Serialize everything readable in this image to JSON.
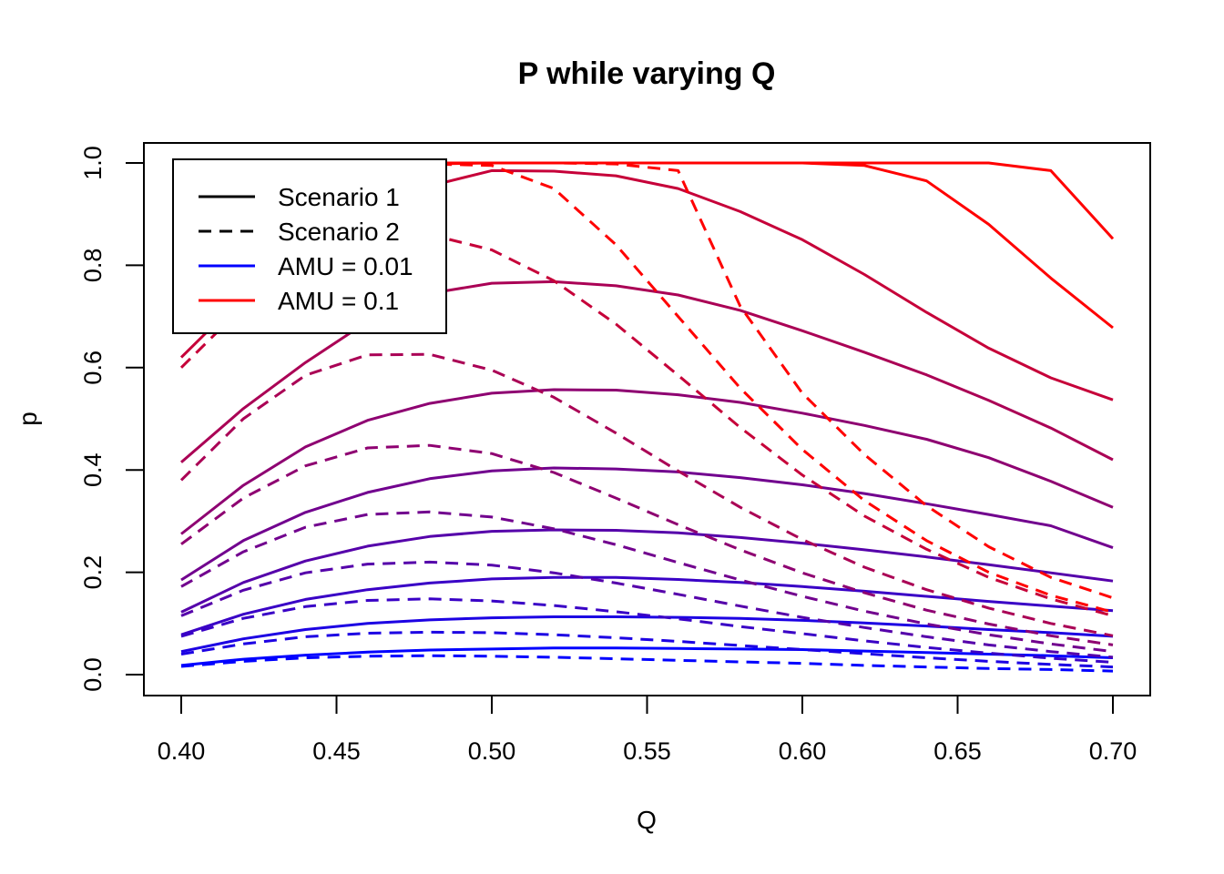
{
  "chart_data": {
    "type": "line",
    "title": "P while varying Q",
    "xlabel": "Q",
    "ylabel": "p",
    "xlim": [
      0.4,
      0.7
    ],
    "ylim": [
      0.0,
      1.0
    ],
    "x_ticks": [
      "0.40",
      "0.45",
      "0.50",
      "0.55",
      "0.60",
      "0.65",
      "0.70"
    ],
    "y_ticks": [
      "0.0",
      "0.2",
      "0.4",
      "0.6",
      "0.8",
      "1.0"
    ],
    "grid": false,
    "legend_position": "top-left",
    "legend": [
      {
        "label": "Scenario 1",
        "style": "solid",
        "color": "#000000"
      },
      {
        "label": "Scenario 2",
        "style": "dashed",
        "color": "#000000"
      },
      {
        "label": "AMU = 0.01",
        "style": "solid",
        "color": "#0000ff"
      },
      {
        "label": "AMU = 0.1",
        "style": "solid",
        "color": "#ff0000"
      }
    ],
    "x": [
      0.4,
      0.42,
      0.44,
      0.46,
      0.48,
      0.5,
      0.52,
      0.54,
      0.56,
      0.58,
      0.6,
      0.62,
      0.64,
      0.66,
      0.68,
      0.7
    ],
    "series": [
      {
        "style": "solid",
        "color": "#0000ff",
        "values": [
          0.018,
          0.03,
          0.038,
          0.044,
          0.048,
          0.05,
          0.052,
          0.052,
          0.051,
          0.05,
          0.049,
          0.046,
          0.043,
          0.04,
          0.037,
          0.033
        ]
      },
      {
        "style": "solid",
        "color": "#1c00e3",
        "values": [
          0.045,
          0.07,
          0.088,
          0.1,
          0.107,
          0.111,
          0.113,
          0.113,
          0.112,
          0.11,
          0.106,
          0.101,
          0.095,
          0.088,
          0.082,
          0.075
        ]
      },
      {
        "style": "solid",
        "color": "#3900c6",
        "values": [
          0.078,
          0.118,
          0.147,
          0.166,
          0.179,
          0.187,
          0.19,
          0.19,
          0.186,
          0.18,
          0.172,
          0.163,
          0.153,
          0.143,
          0.134,
          0.125
        ]
      },
      {
        "style": "solid",
        "color": "#5500aa",
        "values": [
          0.122,
          0.18,
          0.222,
          0.251,
          0.27,
          0.28,
          0.283,
          0.282,
          0.277,
          0.268,
          0.257,
          0.244,
          0.23,
          0.215,
          0.199,
          0.183
        ]
      },
      {
        "style": "solid",
        "color": "#71008e",
        "values": [
          0.185,
          0.262,
          0.317,
          0.356,
          0.383,
          0.398,
          0.404,
          0.402,
          0.396,
          0.385,
          0.371,
          0.354,
          0.334,
          0.313,
          0.291,
          0.248
        ]
      },
      {
        "style": "solid",
        "color": "#8e0071",
        "values": [
          0.275,
          0.37,
          0.445,
          0.497,
          0.53,
          0.55,
          0.557,
          0.556,
          0.547,
          0.532,
          0.511,
          0.487,
          0.46,
          0.424,
          0.378,
          0.327
        ]
      },
      {
        "style": "solid",
        "color": "#aa0055",
        "values": [
          0.415,
          0.52,
          0.61,
          0.69,
          0.745,
          0.765,
          0.768,
          0.76,
          0.742,
          0.712,
          0.672,
          0.63,
          0.586,
          0.536,
          0.482,
          0.42
        ]
      },
      {
        "style": "solid",
        "color": "#c60039",
        "values": [
          0.62,
          0.74,
          0.83,
          0.9,
          0.955,
          0.985,
          0.984,
          0.975,
          0.95,
          0.905,
          0.85,
          0.782,
          0.708,
          0.638,
          0.58,
          0.537
        ]
      },
      {
        "style": "solid",
        "color": "#ff0000",
        "values": [
          0.82,
          0.9,
          0.955,
          0.985,
          0.998,
          1.0,
          1.0,
          1.0,
          1.0,
          1.0,
          1.0,
          0.995,
          0.965,
          0.88,
          0.775,
          0.678
        ]
      },
      {
        "style": "solid",
        "color": "#ff0000",
        "values": [
          0.9,
          0.96,
          0.99,
          0.998,
          1.0,
          1.0,
          1.0,
          1.0,
          1.0,
          1.0,
          1.0,
          1.0,
          1.0,
          1.0,
          0.985,
          0.852
        ]
      },
      {
        "style": "dashed",
        "color": "#0000ff",
        "values": [
          0.016,
          0.026,
          0.033,
          0.036,
          0.037,
          0.036,
          0.034,
          0.031,
          0.028,
          0.025,
          0.022,
          0.018,
          0.015,
          0.012,
          0.01,
          0.007
        ]
      },
      {
        "style": "dashed",
        "color": "#1c00e3",
        "values": [
          0.04,
          0.06,
          0.074,
          0.081,
          0.083,
          0.082,
          0.078,
          0.072,
          0.065,
          0.057,
          0.049,
          0.041,
          0.033,
          0.026,
          0.02,
          0.015
        ]
      },
      {
        "style": "dashed",
        "color": "#3900c6",
        "values": [
          0.075,
          0.11,
          0.133,
          0.145,
          0.148,
          0.144,
          0.135,
          0.123,
          0.109,
          0.094,
          0.08,
          0.066,
          0.053,
          0.042,
          0.032,
          0.024
        ]
      },
      {
        "style": "dashed",
        "color": "#5500aa",
        "values": [
          0.115,
          0.165,
          0.199,
          0.216,
          0.22,
          0.214,
          0.199,
          0.179,
          0.157,
          0.134,
          0.112,
          0.092,
          0.074,
          0.058,
          0.045,
          0.034
        ]
      },
      {
        "style": "dashed",
        "color": "#71008e",
        "values": [
          0.172,
          0.24,
          0.288,
          0.313,
          0.318,
          0.308,
          0.285,
          0.254,
          0.219,
          0.185,
          0.153,
          0.124,
          0.099,
          0.078,
          0.06,
          0.045
        ]
      },
      {
        "style": "dashed",
        "color": "#8e0071",
        "values": [
          0.255,
          0.345,
          0.408,
          0.443,
          0.448,
          0.432,
          0.395,
          0.345,
          0.293,
          0.244,
          0.199,
          0.16,
          0.126,
          0.099,
          0.076,
          0.058
        ]
      },
      {
        "style": "dashed",
        "color": "#aa0055",
        "values": [
          0.38,
          0.5,
          0.585,
          0.625,
          0.626,
          0.595,
          0.542,
          0.472,
          0.398,
          0.327,
          0.264,
          0.21,
          0.166,
          0.13,
          0.1,
          0.076
        ]
      },
      {
        "style": "dashed",
        "color": "#c60039",
        "values": [
          0.6,
          0.72,
          0.81,
          0.86,
          0.86,
          0.83,
          0.77,
          0.685,
          0.585,
          0.483,
          0.39,
          0.31,
          0.245,
          0.19,
          0.148,
          0.115
        ]
      },
      {
        "style": "dashed",
        "color": "#ff0000",
        "values": [
          0.7,
          0.85,
          0.94,
          0.985,
          0.998,
          0.995,
          0.95,
          0.84,
          0.7,
          0.56,
          0.44,
          0.34,
          0.262,
          0.2,
          0.155,
          0.122
        ]
      },
      {
        "style": "dashed",
        "color": "#ff0000",
        "values": [
          0.78,
          0.9,
          0.97,
          0.995,
          1.0,
          1.0,
          1.0,
          0.998,
          0.985,
          0.72,
          0.55,
          0.43,
          0.33,
          0.25,
          0.19,
          0.15
        ]
      }
    ]
  }
}
